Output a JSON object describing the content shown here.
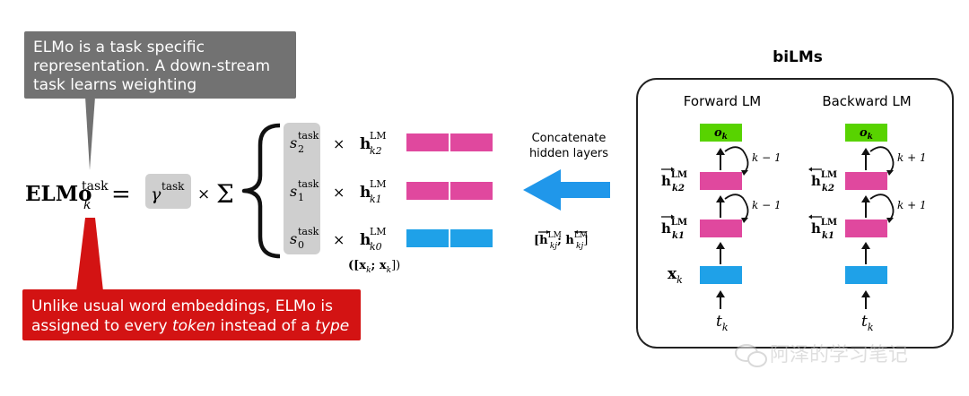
{
  "callouts": {
    "top": [
      "ELMo is a task specific",
      "representation. A down-stream",
      "task learns weighting parameters"
    ],
    "bottom_line1": "Unlike usual word embeddings, ELMo is",
    "bottom_line2_prefix": "assigned to every ",
    "bottom_token": "token",
    "bottom_middle": " instead of a ",
    "bottom_type": "type"
  },
  "formula": {
    "elmo": "ELMo",
    "elmo_sup": "task",
    "elmo_sub": "k",
    "equals": "=",
    "gamma": "γ",
    "gamma_sup": "task",
    "times": "×",
    "sigma": "Σ",
    "rows": [
      {
        "s": "s",
        "s_sup": "task",
        "s_sub": "2",
        "h": "h",
        "h_sup": "LM",
        "h_sub": "k2"
      },
      {
        "s": "s",
        "s_sup": "task",
        "s_sub": "1",
        "h": "h",
        "h_sup": "LM",
        "h_sub": "k1"
      },
      {
        "s": "s",
        "s_sup": "task",
        "s_sub": "0",
        "h": "h",
        "h_sup": "LM",
        "h_sub": "k0"
      }
    ],
    "x_concat": "([x",
    "x_concat_mid": "; x",
    "x_concat_end": "])",
    "x_concat_sub": "k"
  },
  "concat": {
    "line1": "Concatenate",
    "line2": "hidden layers",
    "formula_left": "[h",
    "formula_sep": "; h",
    "formula_end": "]",
    "formula_sup": "LM",
    "formula_sub": "kj"
  },
  "bilms": {
    "title": "biLMs",
    "forward_title": "Forward LM",
    "backward_title": "Backward LM",
    "ok": "o",
    "ok_sub": "k",
    "h": "h",
    "h_sup": "LM",
    "h_sub_top": "k2",
    "h_sub_bottom": "k1",
    "x": "x",
    "x_sub": "k",
    "t": "t",
    "t_sub": "k",
    "fwd_loop": "k − 1",
    "bwd_loop": "k + 1"
  },
  "watermark": "阿泽的学习笔记",
  "colors": {
    "pink": "#e0489e",
    "blue": "#1fa1e8",
    "green": "#58d300",
    "arrow_blue": "#2097ea",
    "gray_callout": "#727272",
    "red_callout": "#d31313",
    "gamma_box": "#cfcfcf",
    "weights_box": "#cfcfcf"
  }
}
